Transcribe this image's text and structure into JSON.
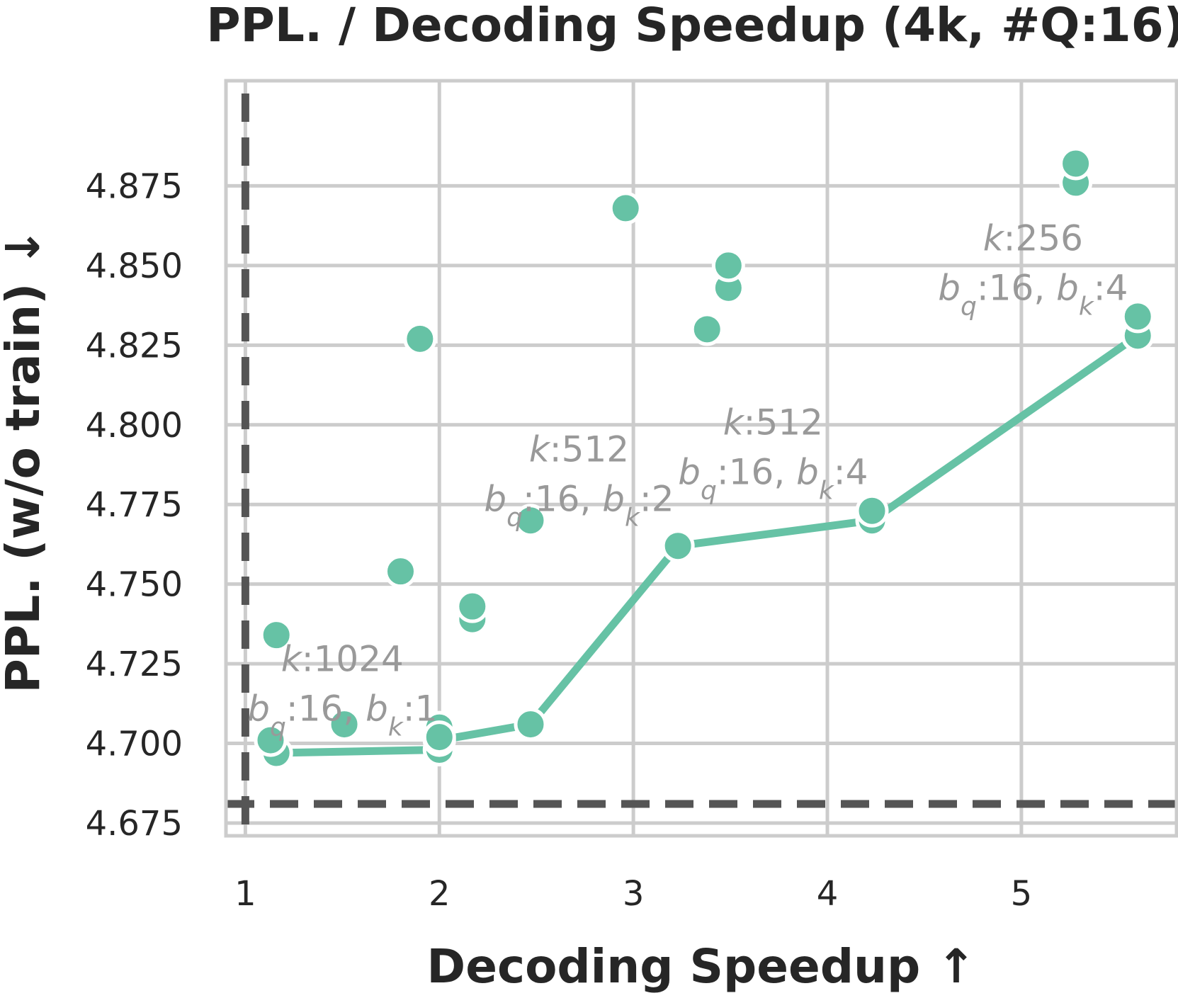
{
  "chart_data": {
    "type": "scatter",
    "title": "PPL. / Decoding Speedup (4k, #Q:16)",
    "xlabel": "Decoding Speedup ↑",
    "ylabel": "PPL. (w/o train) ↓",
    "xlim": [
      0.9,
      5.8
    ],
    "ylim": [
      4.671,
      4.908
    ],
    "xticks": [
      1,
      2,
      3,
      4,
      5
    ],
    "yticks": [
      4.675,
      4.7,
      4.725,
      4.75,
      4.775,
      4.8,
      4.825,
      4.85,
      4.875
    ],
    "ytick_labels": [
      "4.675",
      "4.700",
      "4.725",
      "4.750",
      "4.775",
      "4.800",
      "4.825",
      "4.850",
      "4.875"
    ],
    "grid": true,
    "colors": {
      "series": "#66c2a5",
      "reference": "#555555",
      "annotation": "#999999",
      "grid": "#cccccc"
    },
    "reference_lines": {
      "x": 1.0,
      "y": 4.681
    },
    "points": [
      {
        "x": 1.13,
        "y": 4.701
      },
      {
        "x": 1.16,
        "y": 4.734
      },
      {
        "x": 1.51,
        "y": 4.706
      },
      {
        "x": 1.8,
        "y": 4.754
      },
      {
        "x": 1.9,
        "y": 4.827
      },
      {
        "x": 2.0,
        "y": 4.705
      },
      {
        "x": 2.0,
        "y": 4.702
      },
      {
        "x": 2.17,
        "y": 4.739
      },
      {
        "x": 2.17,
        "y": 4.743
      },
      {
        "x": 2.47,
        "y": 4.77
      },
      {
        "x": 2.96,
        "y": 4.868
      },
      {
        "x": 3.38,
        "y": 4.83
      },
      {
        "x": 3.49,
        "y": 4.843
      },
      {
        "x": 3.49,
        "y": 4.85
      },
      {
        "x": 4.23,
        "y": 4.773
      },
      {
        "x": 5.28,
        "y": 4.876
      },
      {
        "x": 5.28,
        "y": 4.882
      },
      {
        "x": 5.6,
        "y": 4.834
      }
    ],
    "frontier": [
      {
        "x": 1.16,
        "y": 4.697
      },
      {
        "x": 2.0,
        "y": 4.698
      },
      {
        "x": 2.0,
        "y": 4.701
      },
      {
        "x": 2.47,
        "y": 4.706
      },
      {
        "x": 3.23,
        "y": 4.762
      },
      {
        "x": 4.23,
        "y": 4.77
      },
      {
        "x": 5.6,
        "y": 4.828
      }
    ],
    "annotations": [
      {
        "anchor_x": 1.5,
        "anchor_y": 4.7205,
        "line1_var": "k",
        "line1_val": ":1024",
        "var_a": "b",
        "sub_a": "q",
        "mid": ":16, ",
        "var_b": "b",
        "sub_b": "k",
        "tail": ":1"
      },
      {
        "anchor_x": 2.72,
        "anchor_y": 4.7863,
        "line1_var": "k",
        "line1_val": ":512",
        "var_a": "b",
        "sub_a": "q",
        "mid": ":16, ",
        "var_b": "b",
        "sub_b": "k",
        "tail": ":2"
      },
      {
        "anchor_x": 3.72,
        "anchor_y": 4.7947,
        "line1_var": "k",
        "line1_val": ":512",
        "var_a": "b",
        "sub_a": "q",
        "mid": ":16, ",
        "var_b": "b",
        "sub_b": "k",
        "tail": ":4"
      },
      {
        "anchor_x": 5.06,
        "anchor_y": 4.8525,
        "line1_var": "k",
        "line1_val": ":256",
        "var_a": "b",
        "sub_a": "q",
        "mid": ":16, ",
        "var_b": "b",
        "sub_b": "k",
        "tail": ":4"
      }
    ]
  }
}
